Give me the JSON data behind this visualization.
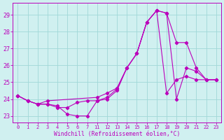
{
  "xlabel": "Windchill (Refroidissement éolien,°C)",
  "bg_color": "#d0f0f0",
  "grid_color": "#a0d8d8",
  "line_color": "#bb00bb",
  "tick_labels": [
    "0",
    "1",
    "2",
    "3",
    "4",
    "5",
    "6",
    "7",
    "11",
    "12",
    "13",
    "14",
    "15",
    "16",
    "17",
    "18",
    "19",
    "20",
    "21",
    "22",
    "23"
  ],
  "line1_pos": [
    0,
    1,
    2,
    3,
    4,
    5,
    6,
    7,
    8,
    9,
    10,
    11,
    12,
    13,
    14,
    15,
    16,
    17,
    18,
    19,
    20
  ],
  "line1_y": [
    24.2,
    23.9,
    23.7,
    23.7,
    23.6,
    23.1,
    23.0,
    23.0,
    23.9,
    24.0,
    24.5,
    25.85,
    26.7,
    28.55,
    29.25,
    29.1,
    24.0,
    25.85,
    25.65,
    25.15,
    25.15
  ],
  "line2_pos": [
    0,
    1,
    2,
    3,
    4,
    5,
    6,
    7,
    8,
    9,
    10,
    11,
    12,
    13,
    14,
    15,
    16,
    17,
    18,
    19,
    20
  ],
  "line2_y": [
    24.2,
    23.9,
    23.7,
    23.7,
    23.5,
    23.5,
    23.8,
    23.9,
    23.9,
    24.1,
    24.6,
    25.85,
    26.7,
    28.55,
    29.25,
    29.1,
    27.35,
    27.35,
    25.85,
    25.15,
    25.15
  ],
  "line3_pos": [
    0,
    1,
    2,
    3,
    8,
    9,
    10,
    11,
    12,
    13,
    14,
    15,
    16,
    17,
    18,
    19,
    20
  ],
  "line3_y": [
    24.2,
    23.9,
    23.7,
    23.9,
    24.1,
    24.35,
    24.65,
    25.85,
    26.7,
    28.55,
    29.25,
    24.35,
    25.15,
    25.35,
    25.15,
    25.15,
    25.15
  ],
  "yticks": [
    23,
    24,
    25,
    26,
    27,
    28,
    29
  ],
  "ylim": [
    22.6,
    29.7
  ],
  "xlim": [
    -0.5,
    20.5
  ]
}
